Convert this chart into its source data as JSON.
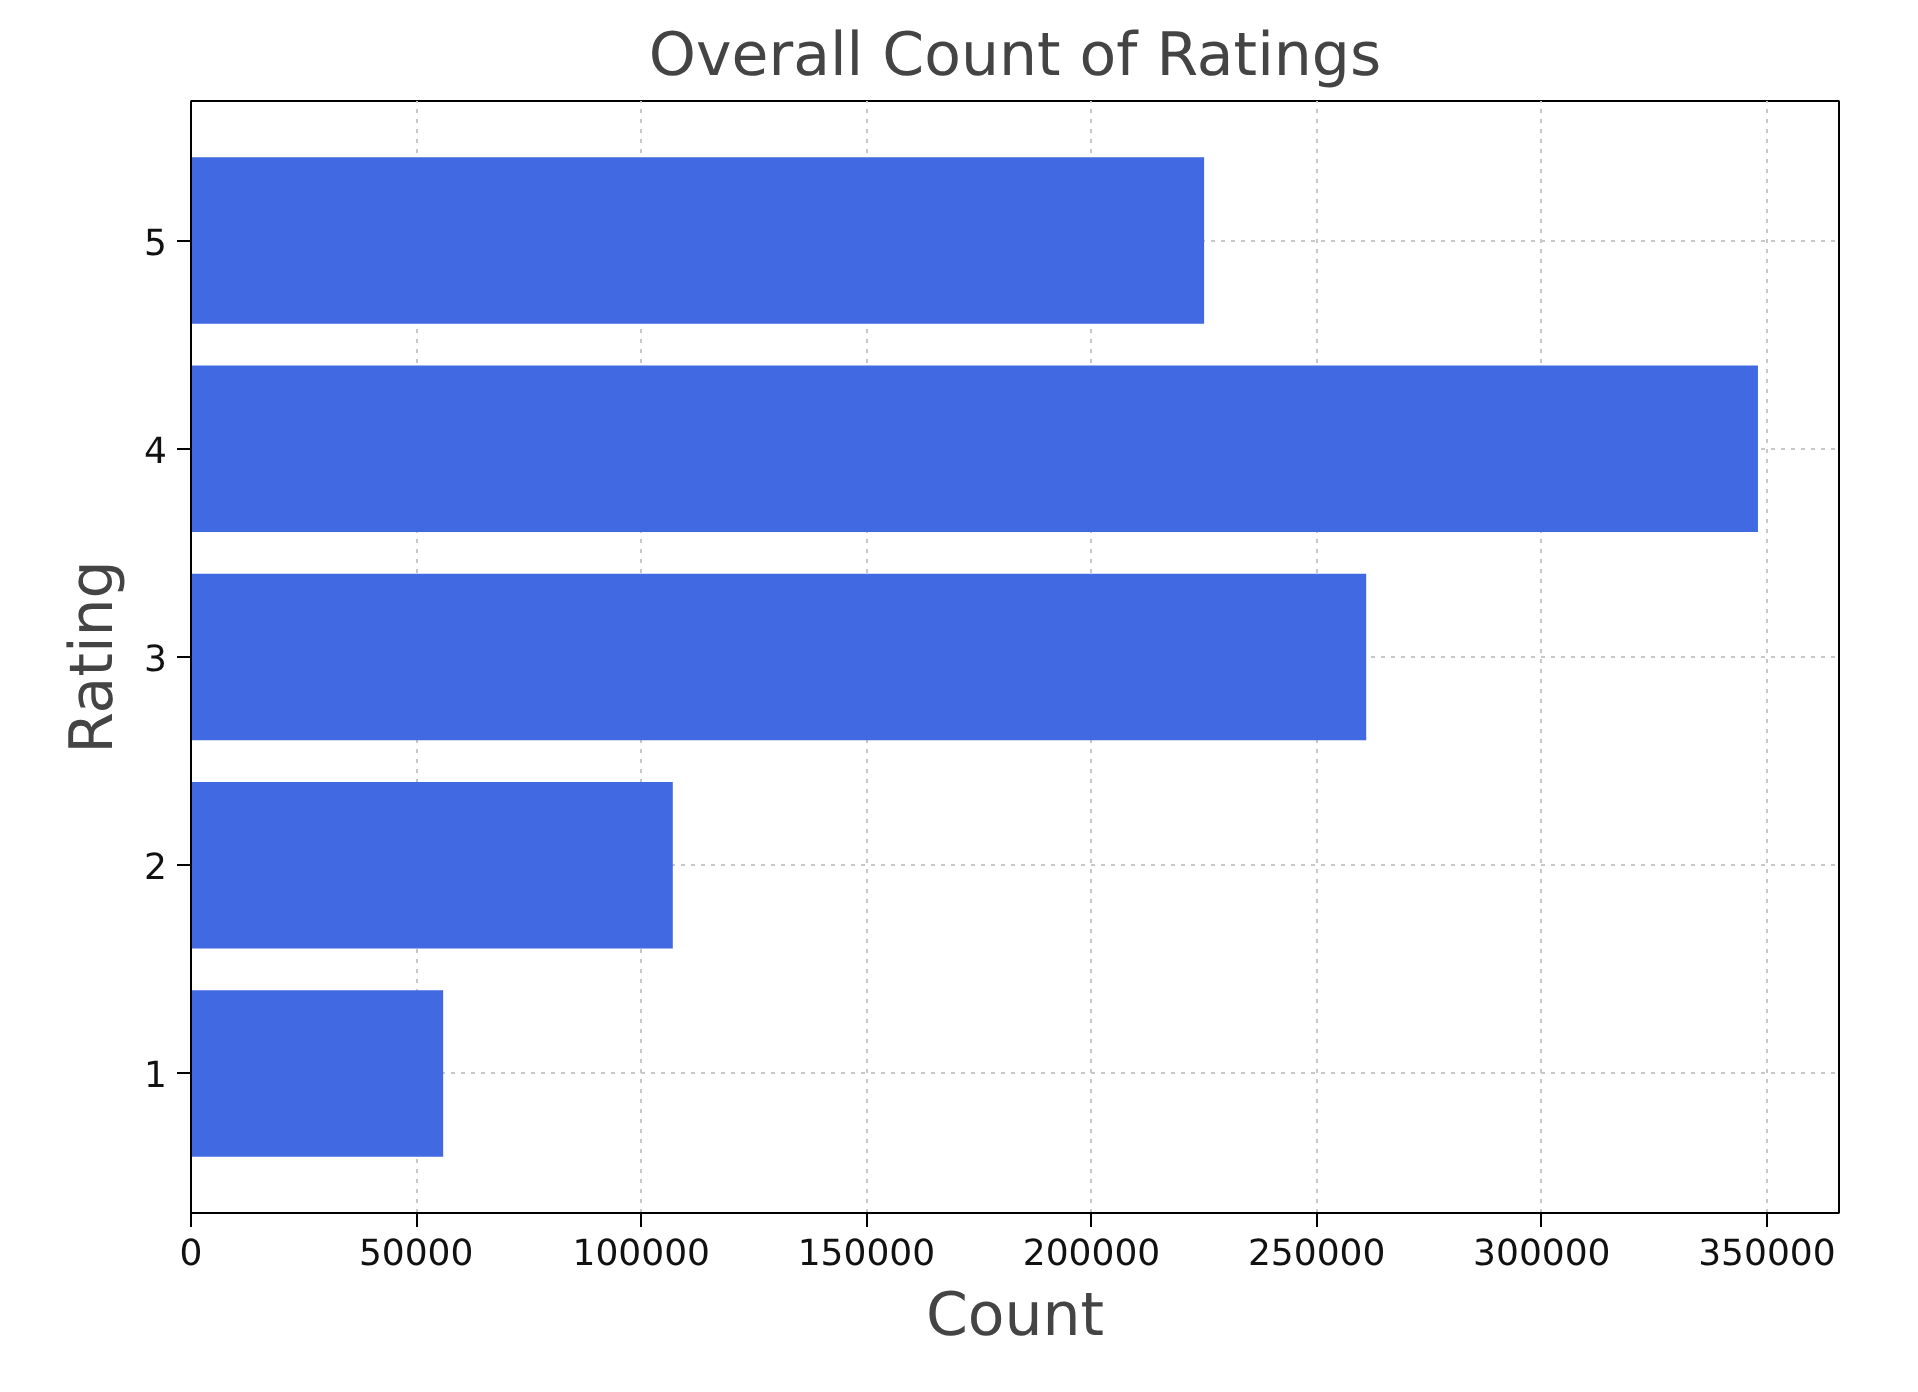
{
  "chart_data": {
    "type": "bar",
    "orientation": "horizontal",
    "title": "Overall Count of Ratings",
    "xlabel": "Count",
    "ylabel": "Rating",
    "categories": [
      "5",
      "4",
      "3",
      "2",
      "1"
    ],
    "values": [
      225000,
      348000,
      261000,
      107000,
      56000
    ],
    "color": "#4169e1",
    "xlim": [
      0,
      366000
    ],
    "xticks": [
      0,
      50000,
      100000,
      150000,
      200000,
      250000,
      300000,
      350000
    ],
    "grid": true
  }
}
